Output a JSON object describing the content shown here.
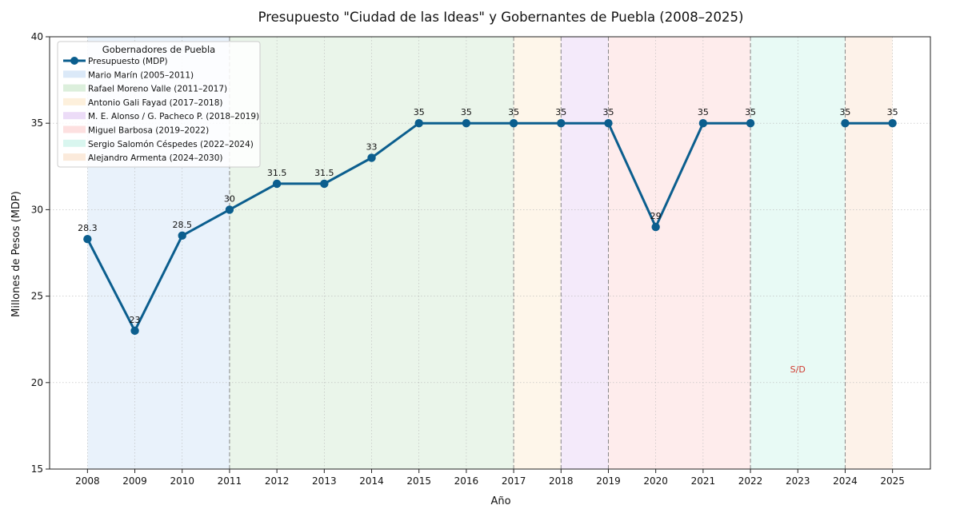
{
  "chart_data": {
    "type": "line",
    "title": "Presupuesto \"Ciudad de las Ideas\" y Gobernantes de Puebla (2008–2025)",
    "xlabel": "Año",
    "ylabel": "Millones de Pesos (MDP)",
    "xlim": [
      2007.2,
      2025.8
    ],
    "ylim": [
      15,
      40
    ],
    "xticks": [
      2008,
      2009,
      2010,
      2011,
      2012,
      2013,
      2014,
      2015,
      2016,
      2017,
      2018,
      2019,
      2020,
      2021,
      2022,
      2023,
      2024,
      2025
    ],
    "yticks": [
      15,
      20,
      25,
      30,
      35,
      40
    ],
    "grid": true,
    "legend_position": "top-left",
    "legend_title": "Gobernadores de Puebla",
    "series": [
      {
        "name": "Presupuesto (MDP)",
        "color": "#0b5e8e",
        "segments": [
          [
            {
              "x": 2008,
              "y": 28.3,
              "label": "28.3"
            },
            {
              "x": 2009,
              "y": 23,
              "label": "23"
            },
            {
              "x": 2010,
              "y": 28.5,
              "label": "28.5"
            },
            {
              "x": 2011,
              "y": 30,
              "label": "30"
            },
            {
              "x": 2012,
              "y": 31.5,
              "label": "31.5"
            },
            {
              "x": 2013,
              "y": 31.5,
              "label": "31.5"
            },
            {
              "x": 2014,
              "y": 33,
              "label": "33"
            },
            {
              "x": 2015,
              "y": 35,
              "label": "35"
            },
            {
              "x": 2016,
              "y": 35,
              "label": "35"
            },
            {
              "x": 2017,
              "y": 35,
              "label": "35"
            },
            {
              "x": 2018,
              "y": 35,
              "label": "35"
            },
            {
              "x": 2019,
              "y": 35,
              "label": "35"
            },
            {
              "x": 2020,
              "y": 29,
              "label": "29"
            },
            {
              "x": 2021,
              "y": 35,
              "label": "35"
            },
            {
              "x": 2022,
              "y": 35,
              "label": "35"
            }
          ],
          [
            {
              "x": 2024,
              "y": 35,
              "label": "35"
            },
            {
              "x": 2025,
              "y": 35,
              "label": "35"
            }
          ]
        ]
      }
    ],
    "governors": [
      {
        "name": "Mario Marín (2005–2011)",
        "start": 2008,
        "end": 2011,
        "color": "#dbe9f8"
      },
      {
        "name": "Rafael Moreno Valle (2011–2017)",
        "start": 2011,
        "end": 2017,
        "color": "#dcefdc"
      },
      {
        "name": "Antonio Gali Fayad (2017–2018)",
        "start": 2017,
        "end": 2018,
        "color": "#fdf0dc"
      },
      {
        "name": "M. E. Alonso / G. Pacheco P. (2018–2019)",
        "start": 2018,
        "end": 2019,
        "color": "#ecdcf7"
      },
      {
        "name": "Miguel Barbosa (2019–2022)",
        "start": 2019,
        "end": 2022,
        "color": "#fde0e0"
      },
      {
        "name": "Sergio Salomón Céspedes (2022–2024)",
        "start": 2022,
        "end": 2024,
        "color": "#d9f6ef"
      },
      {
        "name": "Alejandro Armenta (2024–2030)",
        "start": 2024,
        "end": 2025,
        "color": "#fbeadb"
      }
    ],
    "annotations": [
      {
        "text": "S/D",
        "x": 2023,
        "y": 20.6,
        "color": "#d03a2f"
      }
    ],
    "boundary_lines": [
      2011,
      2017,
      2018,
      2019,
      2022,
      2024
    ]
  }
}
